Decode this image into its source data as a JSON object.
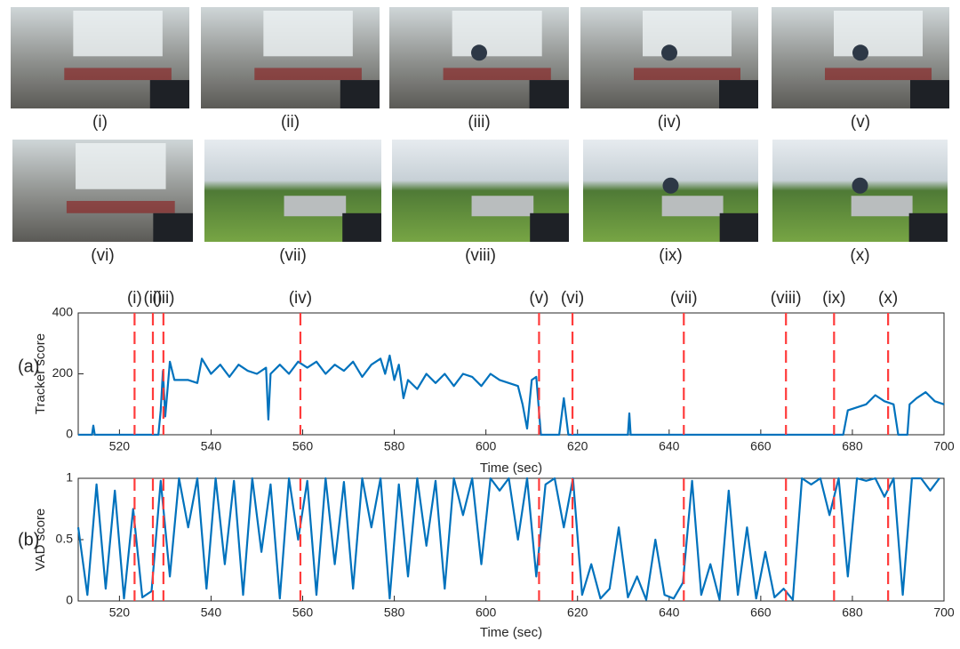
{
  "images": {
    "labels": [
      "(i)",
      "(ii)",
      "(iii)",
      "(iv)",
      "(v)",
      "(vi)",
      "(vii)",
      "(viii)",
      "(ix)",
      "(x)"
    ]
  },
  "chart_data": [
    {
      "type": "line",
      "panel_label": "(a)",
      "ylabel": "Tracker score",
      "xlabel": "Time (sec)",
      "color": "#0072bd",
      "event_color": "#ff3b3b",
      "event_labels": [
        "(i)",
        "(ii)",
        "(iii)",
        "(iv)",
        "(v)",
        "(vi)",
        "(vii)",
        "(viii)",
        "(ix)",
        "(x)"
      ],
      "event_x": [
        523.3,
        527.3,
        529.6,
        559.5,
        611.6,
        618.9,
        643.2,
        665.5,
        676,
        687.8
      ],
      "xlim": [
        511,
        700
      ],
      "xticks": [
        520,
        540,
        560,
        580,
        600,
        620,
        640,
        660,
        680,
        700
      ],
      "ylim": [
        0,
        400
      ],
      "yticks": [
        0,
        200,
        400
      ],
      "x": [
        511,
        514,
        514.3,
        514.6,
        528.5,
        529,
        529.5,
        530,
        531,
        532,
        535,
        537,
        538,
        540,
        542,
        544,
        546,
        548,
        550,
        552,
        552.5,
        553,
        555,
        557,
        559,
        561,
        563,
        565,
        567,
        569,
        571,
        573,
        575,
        577,
        578,
        579,
        580,
        581,
        582,
        583,
        585,
        587,
        589,
        591,
        593,
        595,
        597,
        599,
        601,
        603,
        605,
        607,
        608,
        609,
        610,
        611,
        612,
        616,
        617,
        618,
        631,
        631.3,
        631.6,
        678,
        679,
        681,
        683,
        685,
        687,
        689,
        690,
        692,
        692.5,
        694,
        696,
        698,
        700
      ],
      "values": [
        0,
        0,
        30,
        0,
        0,
        80,
        210,
        60,
        240,
        180,
        180,
        170,
        250,
        200,
        230,
        190,
        230,
        210,
        200,
        220,
        50,
        200,
        230,
        200,
        240,
        220,
        240,
        200,
        230,
        210,
        240,
        190,
        230,
        250,
        200,
        260,
        180,
        230,
        120,
        180,
        150,
        200,
        170,
        200,
        160,
        200,
        190,
        160,
        200,
        180,
        170,
        160,
        100,
        20,
        180,
        190,
        0,
        0,
        120,
        0,
        0,
        70,
        0,
        0,
        80,
        90,
        100,
        130,
        110,
        100,
        0,
        0,
        100,
        120,
        140,
        110,
        100
      ]
    },
    {
      "type": "line",
      "panel_label": "(b)",
      "ylabel": "VAD score",
      "xlabel": "Time (sec)",
      "color": "#0072bd",
      "xlim": [
        511,
        700
      ],
      "xticks": [
        520,
        540,
        560,
        580,
        600,
        620,
        640,
        660,
        680,
        700
      ],
      "ylim": [
        0,
        1
      ],
      "yticks": [
        0,
        0.5,
        1
      ],
      "x": [
        511,
        513,
        515,
        517,
        519,
        521,
        523,
        525,
        527,
        529,
        531,
        533,
        535,
        537,
        539,
        541,
        543,
        545,
        547,
        549,
        551,
        553,
        555,
        557,
        559,
        561,
        563,
        565,
        567,
        569,
        571,
        573,
        575,
        577,
        579,
        581,
        583,
        585,
        587,
        589,
        591,
        593,
        595,
        597,
        599,
        601,
        603,
        605,
        607,
        609,
        611,
        613,
        615,
        617,
        619,
        621,
        623,
        625,
        627,
        629,
        631,
        633,
        635,
        637,
        639,
        641,
        643,
        645,
        647,
        649,
        651,
        653,
        655,
        657,
        659,
        661,
        663,
        665,
        667,
        669,
        671,
        673,
        675,
        677,
        679,
        681,
        683,
        685,
        687,
        689,
        691,
        693,
        695,
        697,
        699
      ],
      "values": [
        0.6,
        0.05,
        0.95,
        0.1,
        0.9,
        0.02,
        0.75,
        0.03,
        0.08,
        0.98,
        0.2,
        1,
        0.6,
        1,
        0.1,
        1,
        0.3,
        0.98,
        0.05,
        1,
        0.4,
        0.95,
        0.02,
        1,
        0.5,
        0.98,
        0.05,
        1,
        0.3,
        0.97,
        0.1,
        1,
        0.6,
        1,
        0.02,
        0.95,
        0.2,
        1,
        0.45,
        0.98,
        0.1,
        1,
        0.7,
        1,
        0.3,
        1,
        0.9,
        1,
        0.5,
        1,
        0.2,
        0.95,
        1,
        0.6,
        1,
        0.05,
        0.3,
        0.02,
        0.1,
        0.6,
        0.03,
        0.2,
        0.01,
        0.5,
        0.05,
        0.02,
        0.15,
        0.98,
        0.05,
        0.3,
        0.01,
        0.9,
        0.05,
        0.6,
        0.02,
        0.4,
        0.03,
        0.1,
        0.01,
        1,
        0.95,
        1,
        0.7,
        1,
        0.2,
        1,
        0.98,
        1,
        0.85,
        1,
        0.05,
        1,
        1,
        0.9,
        1
      ]
    }
  ]
}
